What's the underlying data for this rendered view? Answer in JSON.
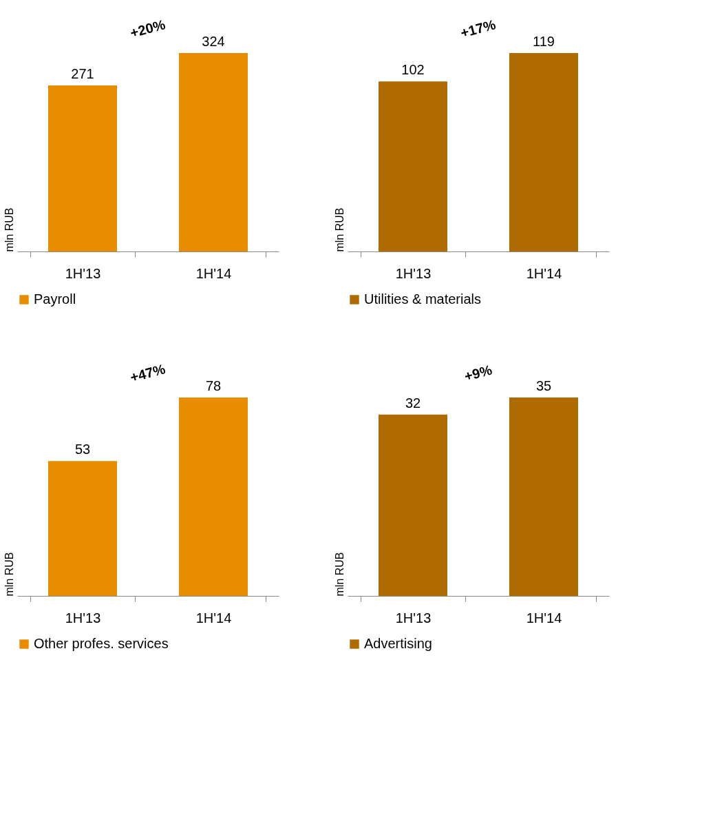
{
  "chart_data": [
    {
      "type": "bar",
      "categories": [
        "1H'13",
        "1H'14"
      ],
      "series": [
        {
          "name": "Payroll",
          "color": "#e88c00",
          "values": [
            271,
            324
          ]
        }
      ],
      "ylabel": "mln RUB",
      "data_labels": true,
      "legend": "bottom",
      "annotations": [
        "+20%"
      ]
    },
    {
      "type": "bar",
      "categories": [
        "1H'13",
        "1H'14"
      ],
      "series": [
        {
          "name": "Utilities & materials",
          "color": "#b06b00",
          "values": [
            102,
            119
          ]
        }
      ],
      "ylabel": "mln RUB",
      "data_labels": true,
      "legend": "bottom",
      "annotations": [
        "+17%"
      ]
    },
    {
      "type": "bar",
      "categories": [
        "1H'13",
        "1H'14"
      ],
      "series": [
        {
          "name": "Other profes. services",
          "color": "#e88c00",
          "values": [
            53,
            78
          ]
        }
      ],
      "ylabel": "mln RUB",
      "data_labels": true,
      "legend": "bottom",
      "annotations": [
        "+47%"
      ]
    },
    {
      "type": "bar",
      "categories": [
        "1H'13",
        "1H'14"
      ],
      "series": [
        {
          "name": "Advertising",
          "color": "#b06b00",
          "values": [
            32,
            35
          ]
        }
      ],
      "ylabel": "mln RUB",
      "data_labels": true,
      "legend": "bottom",
      "annotations": [
        "+9%"
      ]
    }
  ]
}
